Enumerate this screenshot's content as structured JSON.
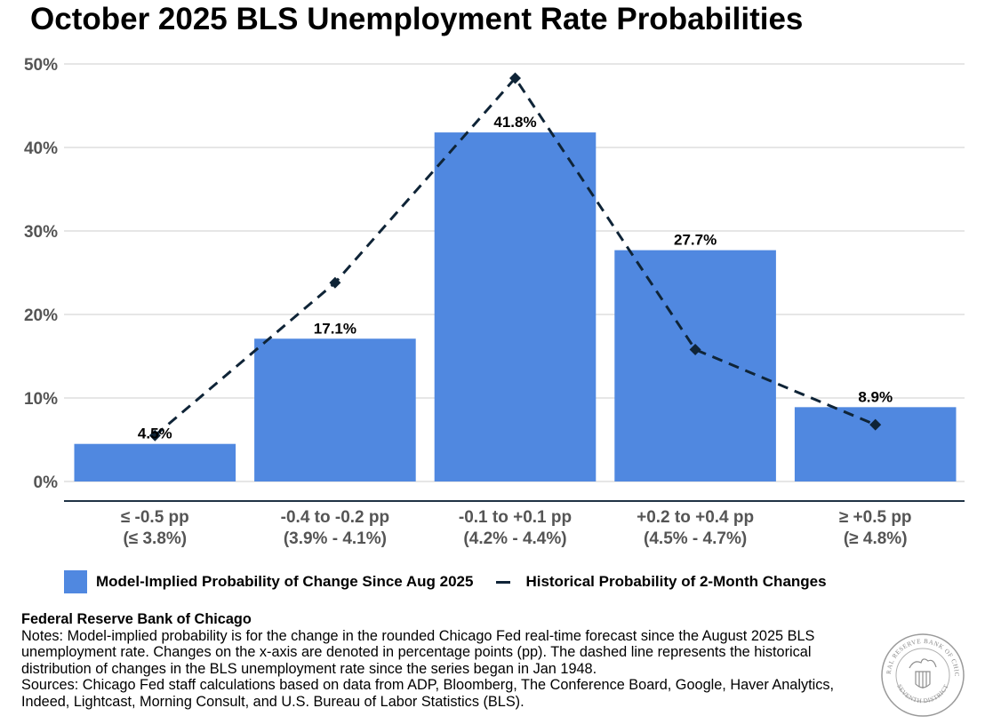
{
  "title": "October 2025 BLS Unemployment Rate Probabilities",
  "colors": {
    "bar": "#5088E0",
    "line": "#0F2437",
    "grid": "#CCCCCC",
    "axis_text": "#555555",
    "baseline": "#1F3345"
  },
  "chart_data": {
    "type": "bar",
    "title": "October 2025 BLS Unemployment Rate Probabilities",
    "categories": [
      [
        "≤ -0.5 pp",
        "(≤ 3.8%)"
      ],
      [
        "-0.4 to -0.2 pp",
        "(3.9% - 4.1%)"
      ],
      [
        "-0.1 to +0.1 pp",
        "(4.2% - 4.4%)"
      ],
      [
        "+0.2 to +0.4 pp",
        "(4.5% - 4.7%)"
      ],
      [
        "≥ +0.5 pp",
        "(≥ 4.8%)"
      ]
    ],
    "series": [
      {
        "name": "Model-Implied Probability of Change Since Aug 2025",
        "type": "bar",
        "values": [
          4.5,
          17.1,
          41.8,
          27.7,
          8.9
        ],
        "labels": [
          "4.5%",
          "17.1%",
          "41.8%",
          "27.7%",
          "8.9%"
        ]
      },
      {
        "name": "Historical Probability of 2-Month Changes",
        "type": "line",
        "style": "dashed",
        "marker": "diamond",
        "values": [
          5.5,
          23.8,
          48.3,
          15.8,
          6.8
        ]
      }
    ],
    "yticks": [
      "0%",
      "10%",
      "20%",
      "30%",
      "40%",
      "50%"
    ],
    "ylim": [
      0,
      50
    ],
    "grid": true,
    "legend_position": "bottom"
  },
  "legend": {
    "bar_label": "Model-Implied Probability of Change Since Aug 2025",
    "line_label": "Historical Probability of 2-Month Changes"
  },
  "footer": {
    "org": "Federal Reserve Bank of Chicago",
    "notes": "Notes: Model-implied probability is for the change in the rounded Chicago Fed real-time forecast since the August 2025 BLS unemployment rate. Changes on the x-axis are denoted in percentage points (pp). The dashed line represents the historical distribution of changes in the BLS unemployment rate since the series began in Jan 1948.",
    "sources": "Sources: Chicago Fed staff calculations based on data from ADP, Bloomberg, The Conference Board, Google, Haver Analytics, Indeed, Lightcast, Morning Consult, and U.S. Bureau of Labor Statistics (BLS)."
  },
  "seal": {
    "text_top": "FEDERAL RESERVE BANK OF CHICAGO",
    "text_bottom": "SEVENTH DISTRICT"
  }
}
